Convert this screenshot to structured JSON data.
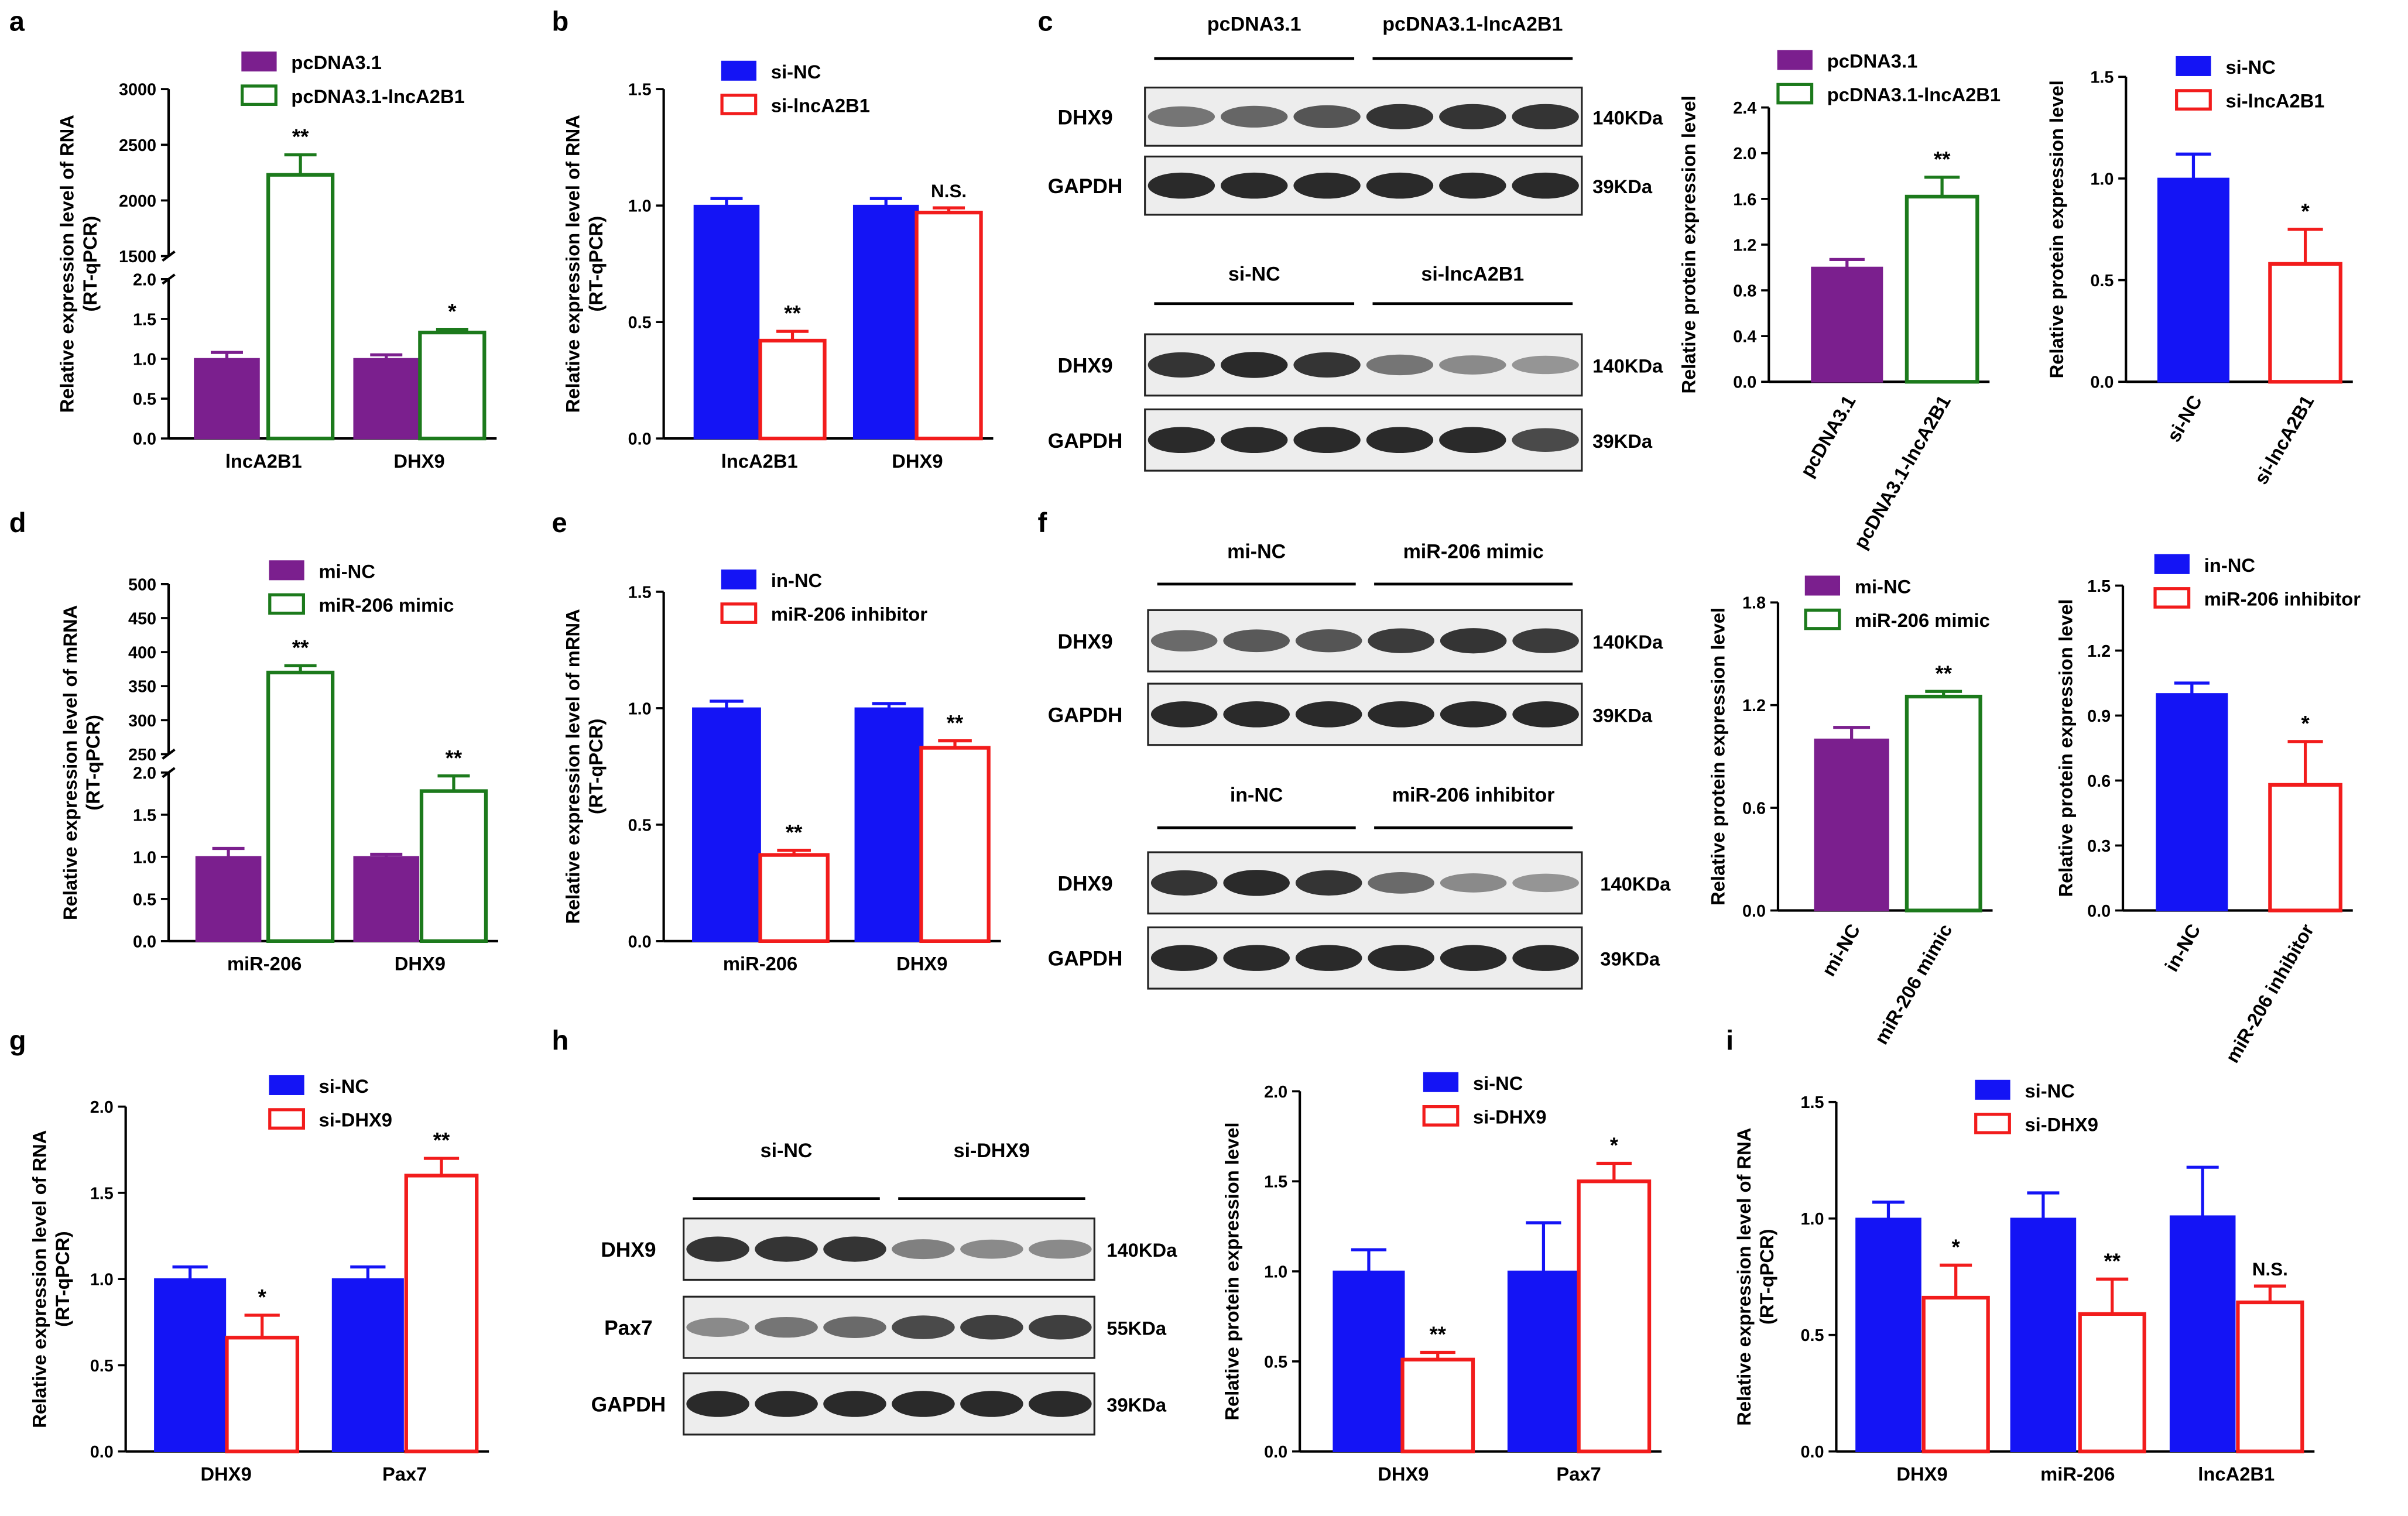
{
  "colors": {
    "purple": "#7b1f8e",
    "green": "#1c7a1c",
    "blue": "#1414f5",
    "red": "#f21c1c",
    "axis": "#000000"
  },
  "chart_data": [
    {
      "id": "a",
      "panel_label": "a",
      "type": "bar",
      "ylabel": [
        "Relative expression level of RNA",
        "(RT-qPCR)"
      ],
      "categories": [
        "lncA2B1",
        "DHX9"
      ],
      "legend": [
        "pcDNA3.1",
        "pcDNA3.1-lncA2B1"
      ],
      "series": [
        {
          "name": "pcDNA3.1",
          "style": "filled",
          "color": "#7b1f8e",
          "values": [
            1.0,
            1.0
          ],
          "errors": [
            0.08,
            0.05
          ]
        },
        {
          "name": "pcDNA3.1-lncA2B1",
          "style": "hollow",
          "color": "#1c7a1c",
          "values": [
            2230,
            1.33
          ],
          "errors": [
            180,
            0.04
          ]
        }
      ],
      "annotations": [
        [
          "",
          "**"
        ],
        [
          "",
          "*"
        ]
      ],
      "axis_break": true,
      "ylim_lower": [
        0,
        2.0
      ],
      "ylim_upper": [
        1500,
        3000
      ],
      "yticks_lower": [
        "0.0",
        "0.5",
        "1.0",
        "1.5",
        "2.0"
      ],
      "yticks_upper": [
        "1500",
        "2000",
        "2500",
        "3000"
      ],
      "xtick_rotation": 0
    },
    {
      "id": "b",
      "panel_label": "b",
      "type": "bar",
      "ylabel": [
        "Relative expression level of RNA",
        "(RT-qPCR)"
      ],
      "categories": [
        "lncA2B1",
        "DHX9"
      ],
      "legend": [
        "si-NC",
        "si-lncA2B1"
      ],
      "series": [
        {
          "name": "si-NC",
          "style": "filled",
          "color": "#1414f5",
          "values": [
            1.0,
            1.0
          ],
          "errors": [
            0.03,
            0.03
          ]
        },
        {
          "name": "si-lncA2B1",
          "style": "hollow",
          "color": "#f21c1c",
          "values": [
            0.42,
            0.97
          ],
          "errors": [
            0.04,
            0.02
          ]
        }
      ],
      "annotations": [
        [
          "",
          "**"
        ],
        [
          "",
          "N.S."
        ]
      ],
      "ylim": [
        0,
        1.5
      ],
      "yticks": [
        "0.0",
        "0.5",
        "1.0",
        "1.5"
      ],
      "xtick_rotation": 0
    },
    {
      "id": "c1",
      "panel_label": "",
      "type": "bar",
      "ylabel": [
        "Relative protein expression level"
      ],
      "categories": [
        "pcDNA3.1",
        "pcDNA3.1-lncA2B1"
      ],
      "legend": [
        "pcDNA3.1",
        "pcDNA3.1-lncA2B1"
      ],
      "series": [
        {
          "name": "expression",
          "values": [
            1.0,
            1.62
          ],
          "errors": [
            0.07,
            0.17
          ],
          "styles": [
            "filled",
            "hollow"
          ],
          "colors": [
            "#7b1f8e",
            "#1c7a1c"
          ]
        }
      ],
      "annotations": [
        "",
        "**"
      ],
      "ylim": [
        0,
        2.4
      ],
      "yticks": [
        "0.0",
        "0.4",
        "0.8",
        "1.2",
        "1.6",
        "2.0",
        "2.4"
      ],
      "xtick_rotation": -60
    },
    {
      "id": "c2",
      "panel_label": "",
      "type": "bar",
      "ylabel": [
        "Relative protein expression level"
      ],
      "categories": [
        "si-NC",
        "si-lncA2B1"
      ],
      "legend": [
        "si-NC",
        "si-lncA2B1"
      ],
      "series": [
        {
          "name": "expression",
          "values": [
            1.0,
            0.58
          ],
          "errors": [
            0.12,
            0.17
          ],
          "styles": [
            "filled",
            "hollow"
          ],
          "colors": [
            "#1414f5",
            "#f21c1c"
          ]
        }
      ],
      "annotations": [
        "",
        "*"
      ],
      "ylim": [
        0,
        1.5
      ],
      "yticks": [
        "0.0",
        "0.5",
        "1.0",
        "1.5"
      ],
      "xtick_rotation": -60
    },
    {
      "id": "d",
      "panel_label": "d",
      "type": "bar",
      "ylabel": [
        "Relative expression level of mRNA",
        "(RT-qPCR)"
      ],
      "categories": [
        "miR-206",
        "DHX9"
      ],
      "legend": [
        "mi-NC",
        "miR-206 mimic"
      ],
      "series": [
        {
          "name": "mi-NC",
          "style": "filled",
          "color": "#7b1f8e",
          "values": [
            1.0,
            1.0
          ],
          "errors": [
            0.1,
            0.03
          ]
        },
        {
          "name": "miR-206 mimic",
          "style": "hollow",
          "color": "#1c7a1c",
          "values": [
            370,
            1.78
          ],
          "errors": [
            10,
            0.18
          ]
        }
      ],
      "annotations": [
        [
          "",
          "**"
        ],
        [
          "",
          "**"
        ]
      ],
      "axis_break": true,
      "ylim_lower": [
        0,
        2.0
      ],
      "ylim_upper": [
        250,
        500
      ],
      "yticks_lower": [
        "0.0",
        "0.5",
        "1.0",
        "1.5",
        "2.0"
      ],
      "yticks_upper": [
        "250",
        "300",
        "350",
        "400",
        "450",
        "500"
      ],
      "xtick_rotation": 0
    },
    {
      "id": "e",
      "panel_label": "e",
      "type": "bar",
      "ylabel": [
        "Relative expression level of mRNA",
        "(RT-qPCR)"
      ],
      "categories": [
        "miR-206",
        "DHX9"
      ],
      "legend": [
        "in-NC",
        "miR-206 inhibitor"
      ],
      "series": [
        {
          "name": "in-NC",
          "style": "filled",
          "color": "#1414f5",
          "values": [
            1.0,
            1.0
          ],
          "errors": [
            0.03,
            0.02
          ]
        },
        {
          "name": "miR-206 inhibitor",
          "style": "hollow",
          "color": "#f21c1c",
          "values": [
            0.37,
            0.83
          ],
          "errors": [
            0.02,
            0.03
          ]
        }
      ],
      "annotations": [
        [
          "",
          "**"
        ],
        [
          "",
          "**"
        ]
      ],
      "ylim": [
        0,
        1.5
      ],
      "yticks": [
        "0.0",
        "0.5",
        "1.0",
        "1.5"
      ],
      "xtick_rotation": 0
    },
    {
      "id": "f1",
      "panel_label": "",
      "type": "bar",
      "ylabel": [
        "Relative protein expression level"
      ],
      "categories": [
        "mi-NC",
        "miR-206 mimic"
      ],
      "legend": [
        "mi-NC",
        "miR-206 mimic"
      ],
      "series": [
        {
          "name": "expression",
          "values": [
            1.0,
            1.25
          ],
          "errors": [
            0.07,
            0.03
          ],
          "styles": [
            "filled",
            "hollow"
          ],
          "colors": [
            "#7b1f8e",
            "#1c7a1c"
          ]
        }
      ],
      "annotations": [
        "",
        "**"
      ],
      "ylim": [
        0,
        1.8
      ],
      "yticks": [
        "0.0",
        "0.6",
        "1.2",
        "1.8"
      ],
      "xtick_rotation": -60
    },
    {
      "id": "f2",
      "panel_label": "",
      "type": "bar",
      "ylabel": [
        "Relative protein expression level"
      ],
      "categories": [
        "in-NC",
        "miR-206 inhibitor"
      ],
      "legend": [
        "in-NC",
        "miR-206 inhibitor"
      ],
      "series": [
        {
          "name": "expression",
          "values": [
            1.0,
            0.58
          ],
          "errors": [
            0.05,
            0.2
          ],
          "styles": [
            "filled",
            "hollow"
          ],
          "colors": [
            "#1414f5",
            "#f21c1c"
          ]
        }
      ],
      "annotations": [
        "",
        "*"
      ],
      "ylim": [
        0,
        1.5
      ],
      "yticks": [
        "0.0",
        "0.3",
        "0.6",
        "0.9",
        "1.2",
        "1.5"
      ],
      "xtick_rotation": -60
    },
    {
      "id": "g",
      "panel_label": "g",
      "type": "bar",
      "ylabel": [
        "Relative expression level of RNA",
        "(RT-qPCR)"
      ],
      "categories": [
        "DHX9",
        "Pax7"
      ],
      "legend": [
        "si-NC",
        "si-DHX9"
      ],
      "series": [
        {
          "name": "si-NC",
          "style": "filled",
          "color": "#1414f5",
          "values": [
            1.0,
            1.0
          ],
          "errors": [
            0.07,
            0.07
          ]
        },
        {
          "name": "si-DHX9",
          "style": "hollow",
          "color": "#f21c1c",
          "values": [
            0.66,
            1.6
          ],
          "errors": [
            0.13,
            0.1
          ]
        }
      ],
      "annotations": [
        [
          "",
          "*"
        ],
        [
          "",
          "**"
        ]
      ],
      "ylim": [
        0,
        2.0
      ],
      "yticks": [
        "0.0",
        "0.5",
        "1.0",
        "1.5",
        "2.0"
      ],
      "xtick_rotation": 0
    },
    {
      "id": "h",
      "panel_label": "",
      "type": "bar",
      "ylabel": [
        "Relative protein expression level"
      ],
      "categories": [
        "DHX9",
        "Pax7"
      ],
      "legend": [
        "si-NC",
        "si-DHX9"
      ],
      "series": [
        {
          "name": "si-NC",
          "style": "filled",
          "color": "#1414f5",
          "values": [
            1.0,
            1.0
          ],
          "errors": [
            0.12,
            0.27
          ]
        },
        {
          "name": "si-DHX9",
          "style": "hollow",
          "color": "#f21c1c",
          "values": [
            0.51,
            1.5
          ],
          "errors": [
            0.04,
            0.1
          ]
        }
      ],
      "annotations": [
        [
          "",
          "**"
        ],
        [
          "",
          "*"
        ]
      ],
      "ylim": [
        0,
        2.0
      ],
      "yticks": [
        "0.0",
        "0.5",
        "1.0",
        "1.5",
        "2.0"
      ],
      "xtick_rotation": 0
    },
    {
      "id": "i",
      "panel_label": "i",
      "type": "bar",
      "ylabel": [
        "Relative expression level of RNA",
        "(RT-qPCR)"
      ],
      "categories": [
        "DHX9",
        "miR-206",
        "lncA2B1"
      ],
      "legend": [
        "si-NC",
        "si-DHX9"
      ],
      "series": [
        {
          "name": "si-NC",
          "style": "filled",
          "color": "#1414f5",
          "values": [
            1.0,
            1.0,
            1.01
          ],
          "errors": [
            0.07,
            0.11,
            0.21
          ]
        },
        {
          "name": "si-DHX9",
          "style": "hollow",
          "color": "#f21c1c",
          "values": [
            0.66,
            0.59,
            0.64
          ],
          "errors": [
            0.14,
            0.15,
            0.07
          ]
        }
      ],
      "annotations": [
        [
          "",
          "*"
        ],
        [
          "",
          "**"
        ],
        [
          "",
          "N.S."
        ]
      ],
      "ylim": [
        0,
        1.5
      ],
      "yticks": [
        "0.0",
        "0.5",
        "1.0",
        "1.5"
      ],
      "xtick_rotation": 0
    }
  ],
  "blots": [
    {
      "id": "c-top",
      "panel_label": "c",
      "groups": [
        "pcDNA3.1",
        "pcDNA3.1-lncA2B1"
      ],
      "rows": [
        {
          "label": "DHX9",
          "size": "140KDa",
          "intensities": [
            0.55,
            0.62,
            0.7,
            0.85,
            0.85,
            0.85
          ]
        },
        {
          "label": "GAPDH",
          "size": "39KDa",
          "intensities": [
            0.9,
            0.9,
            0.9,
            0.9,
            0.9,
            0.9
          ]
        }
      ]
    },
    {
      "id": "c-bottom",
      "panel_label": "",
      "groups": [
        "si-NC",
        "si-lncA2B1"
      ],
      "rows": [
        {
          "label": "DHX9",
          "size": "140KDa",
          "intensities": [
            0.85,
            0.9,
            0.85,
            0.55,
            0.45,
            0.4
          ]
        },
        {
          "label": "GAPDH",
          "size": "39KDa",
          "intensities": [
            0.9,
            0.9,
            0.9,
            0.9,
            0.9,
            0.75
          ]
        }
      ]
    },
    {
      "id": "f-top",
      "panel_label": "f",
      "groups": [
        "mi-NC",
        "miR-206 mimic"
      ],
      "rows": [
        {
          "label": "DHX9",
          "size": "140KDa",
          "intensities": [
            0.6,
            0.68,
            0.7,
            0.82,
            0.85,
            0.82
          ]
        },
        {
          "label": "GAPDH",
          "size": "39KDa",
          "intensities": [
            0.9,
            0.9,
            0.9,
            0.9,
            0.9,
            0.9
          ]
        }
      ]
    },
    {
      "id": "f-bottom",
      "panel_label": "",
      "groups": [
        "in-NC",
        "miR-206 inhibitor"
      ],
      "rows": [
        {
          "label": "DHX9",
          "size": "140KDa",
          "intensities": [
            0.85,
            0.9,
            0.85,
            0.6,
            0.45,
            0.4
          ]
        },
        {
          "label": "GAPDH",
          "size": "39KDa",
          "intensities": [
            0.9,
            0.9,
            0.9,
            0.9,
            0.9,
            0.9
          ]
        }
      ]
    },
    {
      "id": "h-blot",
      "panel_label": "h",
      "groups": [
        "si-NC",
        "si-DHX9"
      ],
      "rows": [
        {
          "label": "DHX9",
          "size": "140KDa",
          "intensities": [
            0.85,
            0.85,
            0.85,
            0.5,
            0.45,
            0.45
          ]
        },
        {
          "label": "Pax7",
          "size": "55KDa",
          "intensities": [
            0.45,
            0.55,
            0.6,
            0.75,
            0.8,
            0.8
          ]
        },
        {
          "label": "GAPDH",
          "size": "39KDa",
          "intensities": [
            0.9,
            0.9,
            0.9,
            0.9,
            0.9,
            0.9
          ]
        }
      ]
    }
  ]
}
